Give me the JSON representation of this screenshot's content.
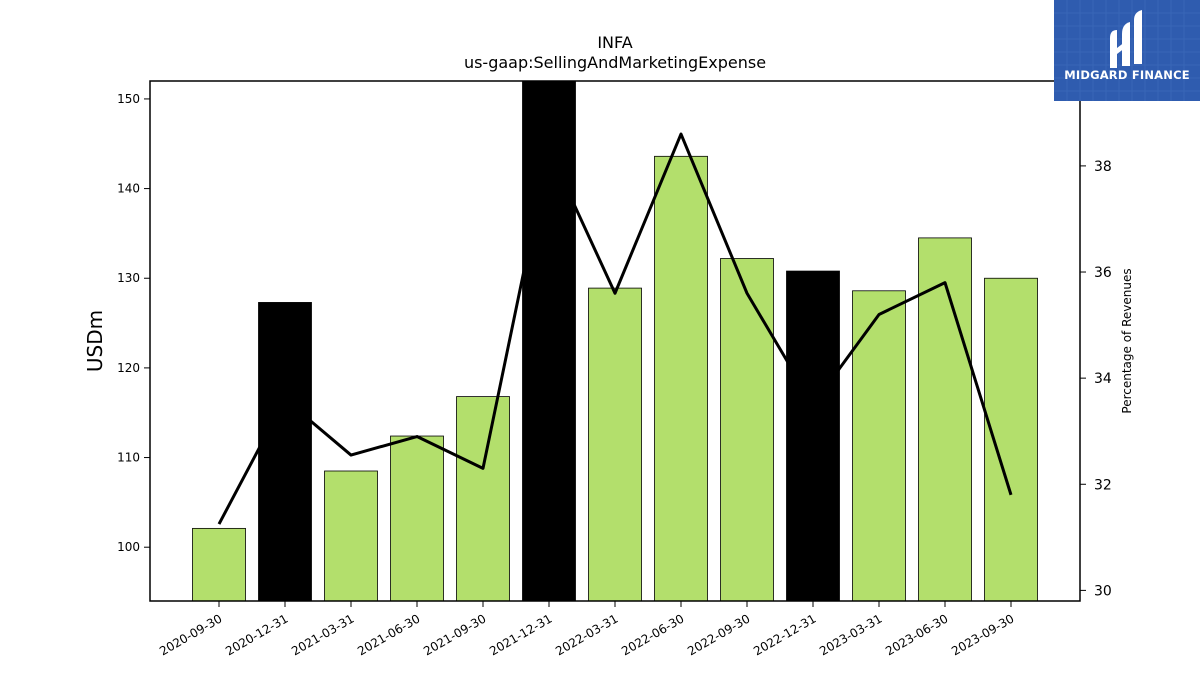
{
  "chart_data": {
    "type": "bar",
    "title": "INFA",
    "subtitle": "us-gaap:SellingAndMarketingExpense",
    "ylabel": "USDm",
    "y2label": "Percentage of Revenues",
    "categories": [
      "2020-09-30",
      "2020-12-31",
      "2021-03-31",
      "2021-06-30",
      "2021-09-30",
      "2021-12-31",
      "2022-03-31",
      "2022-06-30",
      "2022-09-30",
      "2022-12-31",
      "2023-03-31",
      "2023-06-30",
      "2023-09-30"
    ],
    "ylim": [
      94,
      152
    ],
    "y2lim": [
      29.8,
      39.6
    ],
    "yticks": [
      100,
      110,
      120,
      130,
      140,
      150
    ],
    "y2ticks": [
      30,
      32,
      34,
      36,
      38
    ],
    "series": [
      {
        "kind": "bar",
        "values": [
          102.1,
          127.3,
          108.5,
          112.4,
          116.8,
          152.0,
          128.9,
          143.6,
          132.2,
          130.8,
          128.6,
          134.5,
          130.0
        ],
        "colors": [
          "#b3df6c",
          "#000000",
          "#b3df6c",
          "#b3df6c",
          "#b3df6c",
          "#000000",
          "#b3df6c",
          "#b3df6c",
          "#b3df6c",
          "#000000",
          "#b3df6c",
          "#b3df6c",
          "#b3df6c"
        ]
      },
      {
        "kind": "line",
        "axis": "right",
        "color": "#000000",
        "values": [
          31.25,
          33.6,
          32.55,
          32.9,
          32.3,
          38.3,
          35.6,
          38.6,
          35.6,
          33.5,
          35.2,
          35.8,
          31.8
        ]
      }
    ],
    "grid": false
  },
  "logo": {
    "text": "MIDGARD FINANCE",
    "background": "#2f5caf"
  }
}
